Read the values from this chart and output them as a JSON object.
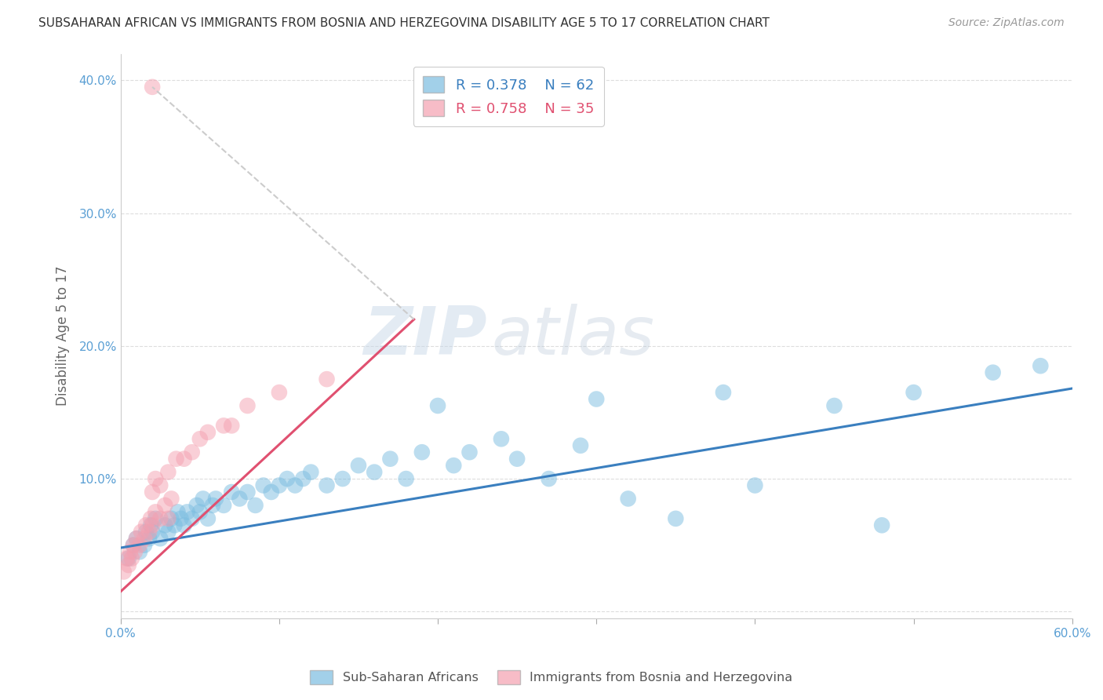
{
  "title": "SUBSAHARAN AFRICAN VS IMMIGRANTS FROM BOSNIA AND HERZEGOVINA DISABILITY AGE 5 TO 17 CORRELATION CHART",
  "source": "Source: ZipAtlas.com",
  "ylabel": "Disability Age 5 to 17",
  "xlabel": "",
  "xlim": [
    0.0,
    0.6
  ],
  "ylim": [
    -0.005,
    0.42
  ],
  "xticks": [
    0.0,
    0.1,
    0.2,
    0.3,
    0.4,
    0.5,
    0.6
  ],
  "yticks": [
    0.0,
    0.1,
    0.2,
    0.3,
    0.4
  ],
  "xticklabels": [
    "0.0%",
    "",
    "",
    "",
    "",
    "",
    "60.0%"
  ],
  "yticklabels": [
    "",
    "10.0%",
    "20.0%",
    "30.0%",
    "40.0%"
  ],
  "blue_R": "0.378",
  "blue_N": "62",
  "pink_R": "0.758",
  "pink_N": "35",
  "blue_color": "#7bbde0",
  "pink_color": "#f4a0b0",
  "trendline_blue": "#3a7fbf",
  "trendline_pink": "#e05070",
  "watermark_zip": "ZIP",
  "watermark_atlas": "atlas",
  "legend_label_blue": "Sub-Saharan Africans",
  "legend_label_pink": "Immigrants from Bosnia and Herzegovina",
  "blue_scatter_x": [
    0.005,
    0.008,
    0.01,
    0.012,
    0.015,
    0.016,
    0.018,
    0.019,
    0.02,
    0.022,
    0.025,
    0.028,
    0.03,
    0.032,
    0.034,
    0.036,
    0.038,
    0.04,
    0.042,
    0.045,
    0.048,
    0.05,
    0.052,
    0.055,
    0.058,
    0.06,
    0.065,
    0.07,
    0.075,
    0.08,
    0.085,
    0.09,
    0.095,
    0.1,
    0.105,
    0.11,
    0.115,
    0.12,
    0.13,
    0.14,
    0.15,
    0.16,
    0.17,
    0.18,
    0.19,
    0.2,
    0.21,
    0.22,
    0.24,
    0.25,
    0.27,
    0.29,
    0.3,
    0.32,
    0.35,
    0.38,
    0.4,
    0.45,
    0.48,
    0.5,
    0.55,
    0.58
  ],
  "blue_scatter_y": [
    0.04,
    0.05,
    0.055,
    0.045,
    0.05,
    0.06,
    0.055,
    0.065,
    0.06,
    0.07,
    0.055,
    0.065,
    0.06,
    0.07,
    0.065,
    0.075,
    0.07,
    0.065,
    0.075,
    0.07,
    0.08,
    0.075,
    0.085,
    0.07,
    0.08,
    0.085,
    0.08,
    0.09,
    0.085,
    0.09,
    0.08,
    0.095,
    0.09,
    0.095,
    0.1,
    0.095,
    0.1,
    0.105,
    0.095,
    0.1,
    0.11,
    0.105,
    0.115,
    0.1,
    0.12,
    0.155,
    0.11,
    0.12,
    0.13,
    0.115,
    0.1,
    0.125,
    0.16,
    0.085,
    0.07,
    0.165,
    0.095,
    0.155,
    0.065,
    0.165,
    0.18,
    0.185
  ],
  "pink_scatter_x": [
    0.002,
    0.004,
    0.005,
    0.006,
    0.007,
    0.008,
    0.009,
    0.01,
    0.012,
    0.013,
    0.015,
    0.016,
    0.018,
    0.019,
    0.02,
    0.022,
    0.025,
    0.028,
    0.03,
    0.032,
    0.02,
    0.022,
    0.025,
    0.03,
    0.035,
    0.04,
    0.045,
    0.05,
    0.055,
    0.065,
    0.07,
    0.08,
    0.1,
    0.13,
    0.02
  ],
  "pink_scatter_y": [
    0.03,
    0.04,
    0.035,
    0.045,
    0.04,
    0.05,
    0.045,
    0.055,
    0.05,
    0.06,
    0.055,
    0.065,
    0.06,
    0.07,
    0.065,
    0.075,
    0.07,
    0.08,
    0.07,
    0.085,
    0.09,
    0.1,
    0.095,
    0.105,
    0.115,
    0.115,
    0.12,
    0.13,
    0.135,
    0.14,
    0.14,
    0.155,
    0.165,
    0.175,
    0.395
  ],
  "pink_trendline_x0": 0.0,
  "pink_trendline_x1": 0.185,
  "blue_trendline_x0": 0.0,
  "blue_trendline_x1": 0.6,
  "blue_trendline_y0": 0.048,
  "blue_trendline_y1": 0.168,
  "pink_trendline_y0": 0.015,
  "pink_trendline_y1": 0.22
}
